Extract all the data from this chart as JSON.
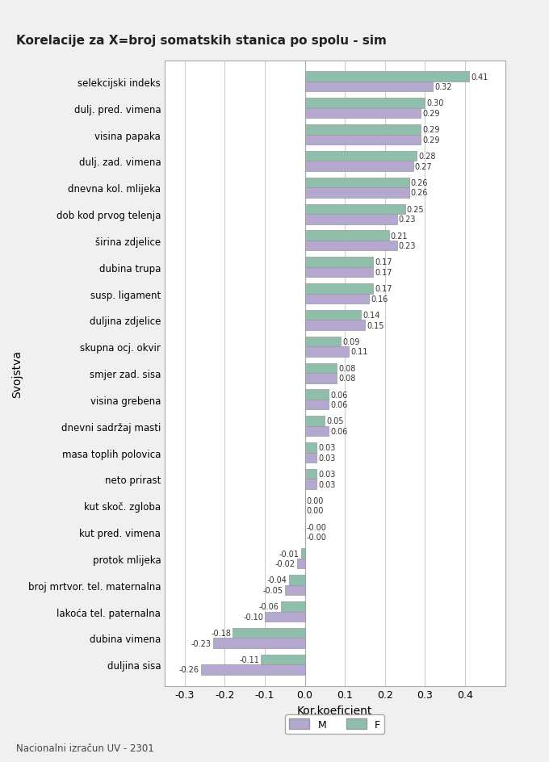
{
  "title": "Korelacije za X=broj somatskih stanica po spolu - sim",
  "xlabel": "Kor.koeficient",
  "ylabel": "Svojstva",
  "footer": "Nacionalni izračun UV - 2301",
  "categories": [
    "selekcijski indeks",
    "dulj. pred. vimena",
    "visina papaka",
    "dulj. zad. vimena",
    "dnevna kol. mlijeka",
    "dob kod prvog telenja",
    "širina zdjelice",
    "dubina trupa",
    "susp. ligament",
    "duljina zdjelice",
    "skupna ocj. okvir",
    "smjer zad. sisa",
    "visina grebena",
    "dnevni sadržaj masti",
    "masa toplih polovica",
    "neto prirast",
    "kut skoč. zgloba",
    "kut pred. vimena",
    "protok mlijeka",
    "broj mrtvor. tel. maternalna",
    "lakoća tel. paternalna",
    "dubina vimena",
    "duljina sisa"
  ],
  "M_values": [
    0.32,
    0.29,
    0.29,
    0.27,
    0.26,
    0.23,
    0.23,
    0.17,
    0.16,
    0.15,
    0.11,
    0.08,
    0.06,
    0.06,
    0.03,
    0.03,
    0.0,
    -0.0,
    -0.02,
    -0.05,
    -0.1,
    -0.23,
    -0.26
  ],
  "F_values": [
    0.41,
    0.3,
    0.29,
    0.28,
    0.26,
    0.25,
    0.21,
    0.17,
    0.17,
    0.14,
    0.09,
    0.08,
    0.06,
    0.05,
    0.03,
    0.03,
    0.0,
    -0.0,
    -0.01,
    -0.04,
    -0.06,
    -0.18,
    -0.11
  ],
  "color_M": "#b5a8d0",
  "color_F": "#8fbfaa",
  "bg_color": "#f0f0f0",
  "plot_bg": "#ffffff",
  "grid_color": "#cccccc",
  "bar_height": 0.38,
  "xlim": [
    -0.35,
    0.5
  ],
  "xticks": [
    -0.3,
    -0.2,
    -0.1,
    0.0,
    0.1,
    0.2,
    0.3,
    0.4
  ]
}
